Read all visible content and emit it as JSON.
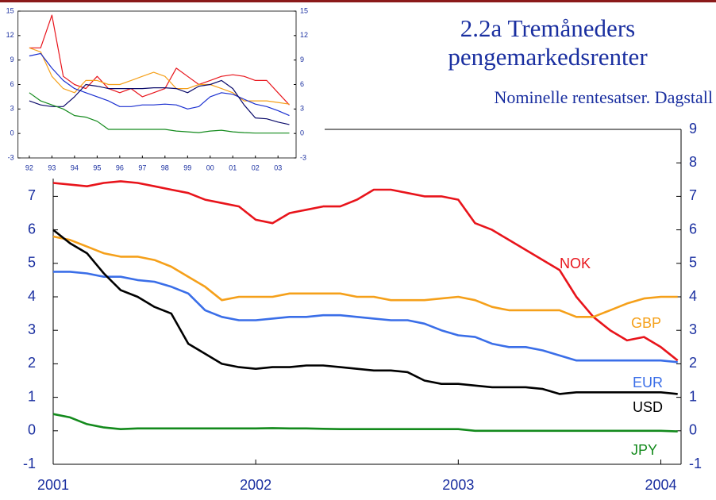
{
  "chart_data": [
    {
      "type": "line",
      "title": "2.2a Tremåneders pengemarkedsrenter",
      "subtitle": "Nominelle rentesatser. Dagstall",
      "x": [
        2001,
        2001.083,
        2001.167,
        2001.25,
        2001.333,
        2001.417,
        2001.5,
        2001.583,
        2001.667,
        2001.75,
        2001.833,
        2001.917,
        2002,
        2002.083,
        2002.167,
        2002.25,
        2002.333,
        2002.417,
        2002.5,
        2002.583,
        2002.667,
        2002.75,
        2002.833,
        2002.917,
        2003,
        2003.083,
        2003.167,
        2003.25,
        2003.333,
        2003.417,
        2003.5,
        2003.583,
        2003.667,
        2003.75,
        2003.833,
        2003.917,
        2004,
        2004.083
      ],
      "xlim": [
        2001,
        2004.1
      ],
      "xticks": [
        2001,
        2002,
        2003,
        2004
      ],
      "ylim": [
        -1,
        9
      ],
      "yticks": [
        -1,
        0,
        1,
        2,
        3,
        4,
        5,
        6,
        7
      ],
      "y2lim": [
        -1,
        9
      ],
      "y2ticks": [
        -1,
        0,
        1,
        2,
        3,
        4,
        5,
        6,
        7,
        8,
        9
      ],
      "series": [
        {
          "name": "NOK",
          "color": "#e8141b",
          "values": [
            7.4,
            7.35,
            7.3,
            7.4,
            7.45,
            7.4,
            7.3,
            7.2,
            7.1,
            6.9,
            6.8,
            6.7,
            6.3,
            6.2,
            6.5,
            6.6,
            6.7,
            6.7,
            6.9,
            7.2,
            7.2,
            7.1,
            7.0,
            7.0,
            6.9,
            6.2,
            6.0,
            5.7,
            5.4,
            5.1,
            4.8,
            4.0,
            3.4,
            3.0,
            2.7,
            2.8,
            2.5,
            2.1
          ]
        },
        {
          "name": "GBP",
          "color": "#f5a01a",
          "values": [
            5.8,
            5.7,
            5.5,
            5.3,
            5.2,
            5.2,
            5.1,
            4.9,
            4.6,
            4.3,
            3.9,
            4.0,
            4.0,
            4.0,
            4.1,
            4.1,
            4.1,
            4.1,
            4.0,
            4.0,
            3.9,
            3.9,
            3.9,
            3.95,
            4.0,
            3.9,
            3.7,
            3.6,
            3.6,
            3.6,
            3.6,
            3.4,
            3.4,
            3.6,
            3.8,
            3.95,
            4.0,
            4.0
          ]
        },
        {
          "name": "EUR",
          "color": "#3a6ee8",
          "values": [
            4.75,
            4.75,
            4.7,
            4.6,
            4.6,
            4.5,
            4.45,
            4.3,
            4.1,
            3.6,
            3.4,
            3.3,
            3.3,
            3.35,
            3.4,
            3.4,
            3.45,
            3.45,
            3.4,
            3.35,
            3.3,
            3.3,
            3.2,
            3.0,
            2.85,
            2.8,
            2.6,
            2.5,
            2.5,
            2.4,
            2.25,
            2.1,
            2.1,
            2.1,
            2.1,
            2.1,
            2.1,
            2.05
          ]
        },
        {
          "name": "USD",
          "color": "#000000",
          "values": [
            6.0,
            5.6,
            5.3,
            4.7,
            4.2,
            4.0,
            3.7,
            3.5,
            2.6,
            2.3,
            2.0,
            1.9,
            1.85,
            1.9,
            1.9,
            1.95,
            1.95,
            1.9,
            1.85,
            1.8,
            1.8,
            1.75,
            1.5,
            1.4,
            1.4,
            1.35,
            1.3,
            1.3,
            1.3,
            1.25,
            1.1,
            1.15,
            1.15,
            1.15,
            1.15,
            1.15,
            1.15,
            1.1
          ]
        },
        {
          "name": "JPY",
          "color": "#138a1c",
          "values": [
            0.5,
            0.4,
            0.2,
            0.1,
            0.05,
            0.07,
            0.07,
            0.07,
            0.07,
            0.07,
            0.07,
            0.07,
            0.07,
            0.08,
            0.07,
            0.07,
            0.06,
            0.05,
            0.05,
            0.05,
            0.05,
            0.05,
            0.05,
            0.05,
            0.05,
            0.0,
            0.0,
            0.0,
            0.0,
            0.0,
            0.0,
            0.0,
            0.0,
            0.0,
            0.0,
            0.0,
            0.0,
            -0.02
          ]
        }
      ]
    },
    {
      "type": "line",
      "x": [
        1992,
        1992.5,
        1993,
        1993.5,
        1994,
        1994.5,
        1995,
        1995.5,
        1996,
        1996.5,
        1997,
        1997.5,
        1998,
        1998.5,
        1999,
        1999.5,
        2000,
        2000.5,
        2001,
        2001.5,
        2002,
        2002.5,
        2003,
        2003.5
      ],
      "xlim": [
        1991.5,
        2003.8
      ],
      "xticks": [
        {
          "value": 1992,
          "label": "92"
        },
        {
          "value": 1993,
          "label": "93"
        },
        {
          "value": 1994,
          "label": "94"
        },
        {
          "value": 1995,
          "label": "95"
        },
        {
          "value": 1996,
          "label": "96"
        },
        {
          "value": 1997,
          "label": "97"
        },
        {
          "value": 1998,
          "label": "98"
        },
        {
          "value": 1999,
          "label": "99"
        },
        {
          "value": 2000,
          "label": "00"
        },
        {
          "value": 2001,
          "label": "01"
        },
        {
          "value": 2002,
          "label": "02"
        },
        {
          "value": 2003,
          "label": "03"
        }
      ],
      "ylim": [
        -3,
        15
      ],
      "yticks": [
        -3,
        0,
        3,
        6,
        9,
        12,
        15
      ],
      "y2lim": [
        -3,
        15
      ],
      "y2ticks": [
        -3,
        0,
        3,
        6,
        9,
        12,
        15
      ],
      "series": [
        {
          "color": "#e8141b",
          "values": [
            10.5,
            10.5,
            14.5,
            7,
            6,
            5.5,
            7,
            5.5,
            5,
            5.5,
            4.5,
            5,
            5.5,
            8,
            7,
            6,
            6.5,
            7,
            7.2,
            7,
            6.5,
            6.5,
            5,
            3.5
          ]
        },
        {
          "color": "#f5a01a",
          "values": [
            10.5,
            10,
            7,
            5.5,
            5,
            6.5,
            6.5,
            6,
            6,
            6.5,
            7,
            7.5,
            7,
            5.5,
            5.5,
            6,
            6,
            5.5,
            5,
            4,
            4,
            4,
            3.8,
            3.6
          ]
        },
        {
          "color": "#1a2fd0",
          "values": [
            9.5,
            9.8,
            8,
            6.5,
            5.5,
            5,
            4.5,
            4.0,
            3.3,
            3.3,
            3.5,
            3.5,
            3.6,
            3.5,
            3.0,
            3.3,
            4.5,
            5,
            4.8,
            4.2,
            3.6,
            3.3,
            2.8,
            2.2
          ]
        },
        {
          "color": "#0a0a6a",
          "values": [
            4,
            3.5,
            3.3,
            3.3,
            4.5,
            6,
            5.8,
            5.5,
            5.5,
            5.5,
            5.5,
            5.6,
            5.6,
            5.5,
            5,
            5.8,
            6,
            6.5,
            5.5,
            3.5,
            1.9,
            1.8,
            1.4,
            1.1
          ]
        },
        {
          "color": "#138a1c",
          "values": [
            5,
            4,
            3.5,
            3,
            2.2,
            2,
            1.5,
            0.5,
            0.5,
            0.5,
            0.5,
            0.5,
            0.5,
            0.3,
            0.2,
            0.1,
            0.3,
            0.4,
            0.2,
            0.1,
            0.05,
            0.05,
            0.05,
            0.05
          ]
        }
      ]
    }
  ]
}
